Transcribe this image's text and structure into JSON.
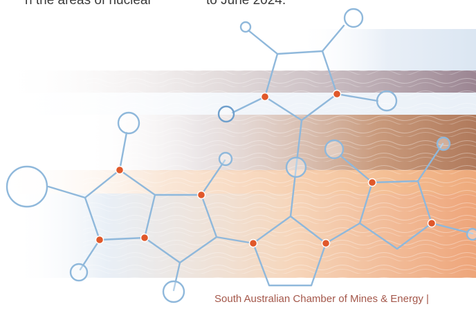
{
  "text_fragments": {
    "left": "n the areas of nuclear",
    "right": "to June 2024."
  },
  "footer": {
    "organisation": "South Australian Chamber of Mines & Energy |"
  },
  "colors": {
    "molecule_line": "#8fb8db",
    "molecule_node": "#e0582a",
    "footer_text": "#a4574a",
    "band_blue": "#dbe6f2",
    "band_orange": "#f4c096",
    "band_brown": "#b07a5c",
    "band_mauve": "#9b8592"
  }
}
